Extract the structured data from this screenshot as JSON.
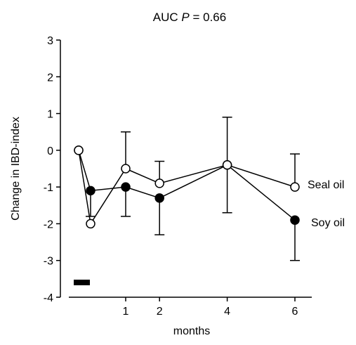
{
  "chart_data": {
    "type": "line",
    "title_prefix": "AUC ",
    "title_italic": "P",
    "title_suffix": " = 0.66",
    "xlabel": "months",
    "ylabel": "Change in IBD-index",
    "ylim": [
      -4,
      3
    ],
    "yticks": [
      "3",
      "2",
      "1",
      "0",
      "-1",
      "-2",
      "-3",
      "-4"
    ],
    "yticks_values": [
      3,
      2,
      1,
      0,
      -1,
      -2,
      -3,
      -4
    ],
    "xticks": [
      "1",
      "2",
      "4",
      "6"
    ],
    "xticks_values": [
      1,
      2,
      4,
      6
    ],
    "grid": false,
    "legend": "inline labels at right end of series",
    "marker_annotation": "black bar near baseline before month 1",
    "series": [
      {
        "name": "Seal oil",
        "marker": "open-circle",
        "x": [
          -0.3,
          0.2,
          1,
          2,
          4,
          6
        ],
        "y": [
          0,
          -2,
          -0.5,
          -0.9,
          -0.4,
          -1
        ],
        "err_upper": [
          null,
          null,
          0.5,
          -0.3,
          0.9,
          -0.1
        ],
        "err_lower": [
          null,
          null,
          null,
          null,
          null,
          null
        ]
      },
      {
        "name": "Soy oil",
        "marker": "filled-circle",
        "x": [
          -0.3,
          0.2,
          1,
          2,
          4,
          6
        ],
        "y": [
          0,
          -1.1,
          -1,
          -1.3,
          -0.4,
          -1.9
        ],
        "err_upper": [
          null,
          null,
          null,
          null,
          null,
          null
        ],
        "err_lower": [
          null,
          -1.8,
          -1.8,
          -2.3,
          -1.7,
          -3
        ]
      }
    ]
  }
}
